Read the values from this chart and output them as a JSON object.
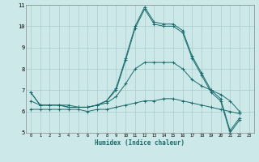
{
  "xlabel": "Humidex (Indice chaleur)",
  "bg_color": "#cce8e8",
  "line_color": "#1a6b6b",
  "grid_color": "#aacccc",
  "xlim": [
    -0.5,
    23.5
  ],
  "ylim": [
    5,
    11
  ],
  "xticks": [
    0,
    1,
    2,
    3,
    4,
    5,
    6,
    7,
    8,
    9,
    10,
    11,
    12,
    13,
    14,
    15,
    16,
    17,
    18,
    19,
    20,
    21,
    22,
    23
  ],
  "yticks": [
    5,
    6,
    7,
    8,
    9,
    10,
    11
  ],
  "curves": [
    [
      6.9,
      6.3,
      6.3,
      6.3,
      6.3,
      6.2,
      6.2,
      6.3,
      6.5,
      7.1,
      8.5,
      10.0,
      10.9,
      10.2,
      10.1,
      10.1,
      9.8,
      8.6,
      7.8,
      7.0,
      6.6,
      5.1,
      5.7,
      null
    ],
    [
      6.9,
      6.3,
      6.3,
      6.3,
      6.2,
      6.2,
      6.2,
      6.3,
      6.5,
      7.0,
      8.4,
      9.9,
      10.8,
      10.1,
      10.0,
      10.0,
      9.7,
      8.5,
      7.7,
      6.9,
      6.5,
      5.0,
      5.6,
      null
    ],
    [
      6.5,
      6.3,
      6.3,
      6.3,
      6.2,
      6.2,
      6.2,
      6.3,
      6.4,
      6.7,
      7.3,
      8.0,
      8.3,
      8.3,
      8.3,
      8.3,
      8.0,
      7.5,
      7.2,
      7.0,
      6.8,
      6.5,
      6.0,
      null
    ],
    [
      6.1,
      6.1,
      6.1,
      6.1,
      6.1,
      6.1,
      6.0,
      6.1,
      6.1,
      6.2,
      6.3,
      6.4,
      6.5,
      6.5,
      6.6,
      6.6,
      6.5,
      6.4,
      6.3,
      6.2,
      6.1,
      6.0,
      5.9,
      null
    ]
  ]
}
